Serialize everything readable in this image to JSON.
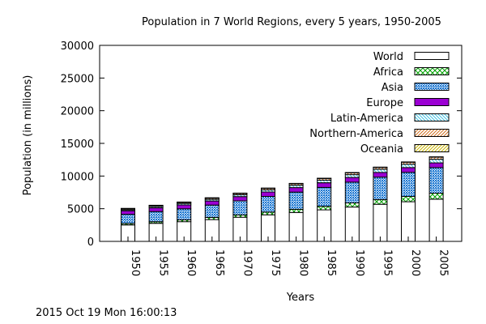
{
  "chart_data": {
    "type": "bar",
    "stacked": true,
    "title": "Population in 7 World Regions, every 5 years, 1950-2005",
    "xlabel": "Years",
    "ylabel": "Population (in millions)",
    "ylim": [
      0,
      30000
    ],
    "yticks": [
      0,
      5000,
      10000,
      15000,
      20000,
      25000,
      30000
    ],
    "legend_position": "top-right",
    "categories": [
      "1950",
      "1955",
      "1960",
      "1965",
      "1970",
      "1975",
      "1980",
      "1985",
      "1990",
      "1995",
      "2000",
      "2005"
    ],
    "series": [
      {
        "name": "World",
        "pattern": "solid",
        "color": "#ffffff",
        "values": [
          2520,
          2760,
          3020,
          3340,
          3690,
          4070,
          4430,
          4830,
          5260,
          5680,
          6070,
          6450
        ]
      },
      {
        "name": "Africa",
        "pattern": "crosshatch",
        "color": "#00a000",
        "values": [
          224,
          250,
          282,
          322,
          370,
          420,
          480,
          543,
          630,
          720,
          812,
          921
        ]
      },
      {
        "name": "Asia",
        "pattern": "dots",
        "color": "#1e78d2",
        "values": [
          1400,
          1550,
          1680,
          1890,
          2140,
          2400,
          2630,
          2890,
          3170,
          3430,
          3680,
          3920
        ]
      },
      {
        "name": "Europe",
        "pattern": "solid",
        "color": "#9b00d3",
        "values": [
          547,
          575,
          604,
          634,
          656,
          676,
          692,
          706,
          721,
          727,
          727,
          729
        ]
      },
      {
        "name": "Latin-America",
        "pattern": "diagonal",
        "color": "#40c0e0",
        "values": [
          167,
          191,
          218,
          250,
          285,
          322,
          361,
          400,
          440,
          480,
          520,
          556
        ]
      },
      {
        "name": "Northern-America",
        "pattern": "diagonal",
        "color": "#d07020",
        "values": [
          172,
          187,
          204,
          219,
          232,
          243,
          256,
          270,
          283,
          300,
          316,
          332
        ]
      },
      {
        "name": "Oceania",
        "pattern": "diagonal",
        "color": "#c8b400",
        "values": [
          12,
          14,
          16,
          17,
          19,
          21,
          23,
          25,
          27,
          29,
          31,
          33
        ]
      }
    ]
  },
  "footer": {
    "timestamp": "2015 Oct 19 Mon 16:00:13"
  }
}
